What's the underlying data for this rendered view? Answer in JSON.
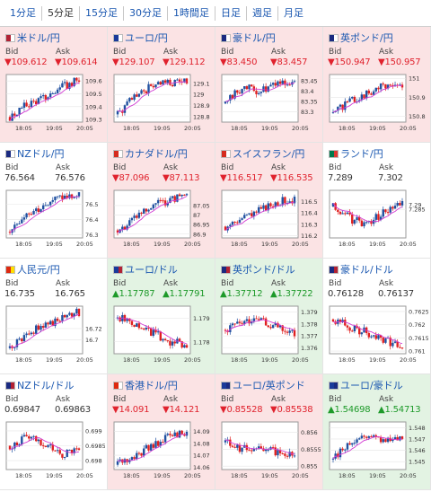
{
  "tabs": [
    "1分足",
    "5分足",
    "15分足",
    "30分足",
    "1時間足",
    "日足",
    "週足",
    "月足"
  ],
  "active_tab": 1,
  "labels": {
    "bid": "Bid",
    "ask": "Ask"
  },
  "colors": {
    "down_bg": "#fbe3e4",
    "up_bg": "#e3f3e3",
    "bull": "#2050a0",
    "bear": "#e02020",
    "ma": "#d23bd2",
    "link": "#1a57b0"
  },
  "tiles": [
    {
      "name": "米ドル/円",
      "dir": "down",
      "flags": [
        "#b22234",
        "#ffffff"
      ],
      "bid": "▼109.612",
      "ask": "▼109.614",
      "chart_data": {
        "type": "candlestick",
        "ylim": [
          109.28,
          109.65
        ],
        "yticks": [
          "109.6",
          "109.5",
          "109.4",
          "109.3"
        ],
        "xticks": [
          "18:05",
          "19:05",
          "20:05"
        ],
        "trend": [
          109.32,
          109.42,
          109.47,
          109.55,
          109.61
        ]
      }
    },
    {
      "name": "ユーロ/円",
      "dir": "down",
      "flags": [
        "#1a3a9a",
        "#ffffff"
      ],
      "bid": "▼129.107",
      "ask": "▼129.112",
      "chart_data": {
        "type": "candlestick",
        "ylim": [
          128.75,
          129.18
        ],
        "yticks": [
          "129.1",
          "129",
          "128.9",
          "128.8"
        ],
        "xticks": [
          "18:05",
          "19:05",
          "20:05"
        ],
        "trend": [
          128.82,
          128.98,
          129.08,
          129.1,
          129.11
        ]
      }
    },
    {
      "name": "豪ドル/円",
      "dir": "down",
      "flags": [
        "#1a2a80",
        "#ffffff"
      ],
      "bid": "▼83.450",
      "ask": "▼83.457",
      "chart_data": {
        "type": "candlestick",
        "ylim": [
          83.25,
          83.48
        ],
        "yticks": [
          "83.45",
          "83.4",
          "83.35",
          "83.3"
        ],
        "xticks": [
          "18:05",
          "19:05",
          "20:05"
        ],
        "trend": [
          83.34,
          83.42,
          83.4,
          83.44,
          83.45
        ]
      }
    },
    {
      "name": "英ポンド/円",
      "dir": "down",
      "flags": [
        "#1a2a80",
        "#ffffff"
      ],
      "bid": "▼150.947",
      "ask": "▼150.957",
      "chart_data": {
        "type": "candlestick",
        "ylim": [
          150.77,
          151.02
        ],
        "yticks": [
          "151",
          "150.9",
          "150.8"
        ],
        "xticks": [
          "18:05",
          "19:05",
          "20:05"
        ],
        "trend": [
          150.82,
          150.88,
          150.92,
          150.97,
          150.95
        ]
      }
    },
    {
      "name": "NZドル/円",
      "dir": "flat",
      "flags": [
        "#1a2a80",
        "#ffffff"
      ],
      "bid": "76.564",
      "ask": "76.576",
      "chart_data": {
        "type": "candlestick",
        "ylim": [
          76.28,
          76.59
        ],
        "yticks": [
          "76.5",
          "76.4",
          "76.3"
        ],
        "xticks": [
          "18:05",
          "19:05",
          "20:05"
        ],
        "trend": [
          76.32,
          76.45,
          76.49,
          76.54,
          76.57
        ]
      }
    },
    {
      "name": "カナダドル/円",
      "dir": "down",
      "flags": [
        "#d52b1e",
        "#ffffff"
      ],
      "bid": "▼87.096",
      "ask": "▼87.113",
      "chart_data": {
        "type": "candlestick",
        "ylim": [
          86.88,
          87.13
        ],
        "yticks": [
          "87.05",
          "87",
          "86.95",
          "86.9"
        ],
        "xticks": [
          "18:05",
          "19:05",
          "20:05"
        ],
        "trend": [
          86.92,
          86.98,
          87.05,
          87.08,
          87.1
        ]
      }
    },
    {
      "name": "スイスフラン/円",
      "dir": "down",
      "flags": [
        "#d52b1e",
        "#ffffff"
      ],
      "bid": "▼116.517",
      "ask": "▼116.535",
      "chart_data": {
        "type": "candlestick",
        "ylim": [
          116.18,
          116.6
        ],
        "yticks": [
          "116.5",
          "116.4",
          "116.3",
          "116.2"
        ],
        "xticks": [
          "18:05",
          "19:05",
          "20:05"
        ],
        "trend": [
          116.28,
          116.36,
          116.42,
          116.5,
          116.52
        ]
      }
    },
    {
      "name": "ランド/円",
      "dir": "flat",
      "flags": [
        "#007a4d",
        "#de3831"
      ],
      "bid": "7.289",
      "ask": "7.302",
      "chart_data": {
        "type": "candlestick",
        "ylim": [
          7.255,
          7.305
        ],
        "yticks": [
          "7.29",
          "7.285"
        ],
        "xticks": [
          "18:05",
          "19:05",
          "20:05"
        ],
        "trend": [
          7.288,
          7.275,
          7.27,
          7.283,
          7.29
        ]
      }
    },
    {
      "name": "人民元/円",
      "dir": "flat",
      "flags": [
        "#de2910",
        "#ffde00"
      ],
      "bid": "16.735",
      "ask": "16.765",
      "chart_data": {
        "type": "candlestick",
        "ylim": [
          16.675,
          16.76
        ],
        "yticks": [
          "16.72",
          "16.7"
        ],
        "xticks": [
          "18:05",
          "19:05",
          "20:05"
        ],
        "trend": [
          16.685,
          16.712,
          16.725,
          16.74,
          16.75
        ]
      }
    },
    {
      "name": "ユーロ/ドル",
      "dir": "up",
      "flags": [
        "#1a3a9a",
        "#b22234"
      ],
      "bid": "▲1.17787",
      "ask": "▲1.17791",
      "chart_data": {
        "type": "candlestick",
        "ylim": [
          1.1775,
          1.1795
        ],
        "yticks": [
          "1.179",
          "1.178"
        ],
        "xticks": [
          "18:05",
          "19:05",
          "20:05"
        ],
        "trend": [
          1.179,
          1.1788,
          1.1784,
          1.178,
          1.1779
        ]
      }
    },
    {
      "name": "英ポンド/ドル",
      "dir": "up",
      "flags": [
        "#1a2a80",
        "#b22234"
      ],
      "bid": "▲1.37712",
      "ask": "▲1.37722",
      "chart_data": {
        "type": "candlestick",
        "ylim": [
          1.3755,
          1.3795
        ],
        "yticks": [
          "1.379",
          "1.378",
          "1.377",
          "1.376"
        ],
        "xticks": [
          "18:05",
          "19:05",
          "20:05"
        ],
        "trend": [
          1.3775,
          1.378,
          1.3782,
          1.3778,
          1.3772
        ]
      }
    },
    {
      "name": "豪ドル/ドル",
      "dir": "flat",
      "flags": [
        "#1a2a80",
        "#b22234"
      ],
      "bid": "0.76128",
      "ask": "0.76137",
      "chart_data": {
        "type": "candlestick",
        "ylim": [
          0.7609,
          0.7627
        ],
        "yticks": [
          "0.7625",
          "0.762",
          "0.7615",
          "0.761"
        ],
        "xticks": [
          "18:05",
          "19:05",
          "20:05"
        ],
        "trend": [
          0.7622,
          0.7619,
          0.7617,
          0.7614,
          0.7612
        ]
      }
    },
    {
      "name": "NZドル/ドル",
      "dir": "flat",
      "flags": [
        "#1a2a80",
        "#b22234"
      ],
      "bid": "0.69847",
      "ask": "0.69863",
      "chart_data": {
        "type": "candlestick",
        "ylim": [
          0.6977,
          0.6993
        ],
        "yticks": [
          "0.699",
          "0.6985",
          "0.698"
        ],
        "xticks": [
          "18:05",
          "19:05",
          "20:05"
        ],
        "trend": [
          0.6985,
          0.6988,
          0.6986,
          0.6982,
          0.6984
        ]
      }
    },
    {
      "name": "香港ドル/円",
      "dir": "down",
      "flags": [
        "#de2910",
        "#ffffff"
      ],
      "bid": "▼14.091",
      "ask": "▼14.121",
      "chart_data": {
        "type": "candlestick",
        "ylim": [
          14.058,
          14.098
        ],
        "yticks": [
          "14.09",
          "14.08",
          "14.07",
          "14.06"
        ],
        "xticks": [
          "18:05",
          "19:05",
          "20:05"
        ],
        "trend": [
          14.062,
          14.07,
          14.078,
          14.087,
          14.09
        ]
      }
    },
    {
      "name": "ユーロ/英ポンド",
      "dir": "down",
      "flags": [
        "#1a3a9a",
        "#1a2a80"
      ],
      "bid": "▼0.85528",
      "ask": "▼0.85538",
      "chart_data": {
        "type": "candlestick",
        "ylim": [
          0.8549,
          0.8563
        ],
        "yticks": [
          "0.856",
          "0.8555",
          "0.855"
        ],
        "xticks": [
          "18:05",
          "19:05",
          "20:05"
        ],
        "trend": [
          0.8557,
          0.8555,
          0.8556,
          0.8554,
          0.8553
        ]
      }
    },
    {
      "name": "ユーロ/豪ドル",
      "dir": "up",
      "flags": [
        "#1a3a9a",
        "#1a2a80"
      ],
      "bid": "▲1.54698",
      "ask": "▲1.54713",
      "chart_data": {
        "type": "candlestick",
        "ylim": [
          1.5443,
          1.5485
        ],
        "yticks": [
          "1.548",
          "1.547",
          "1.546",
          "1.545"
        ],
        "xticks": [
          "18:05",
          "19:05",
          "20:05"
        ],
        "trend": [
          1.5452,
          1.5468,
          1.5474,
          1.547,
          1.5469
        ]
      }
    }
  ]
}
